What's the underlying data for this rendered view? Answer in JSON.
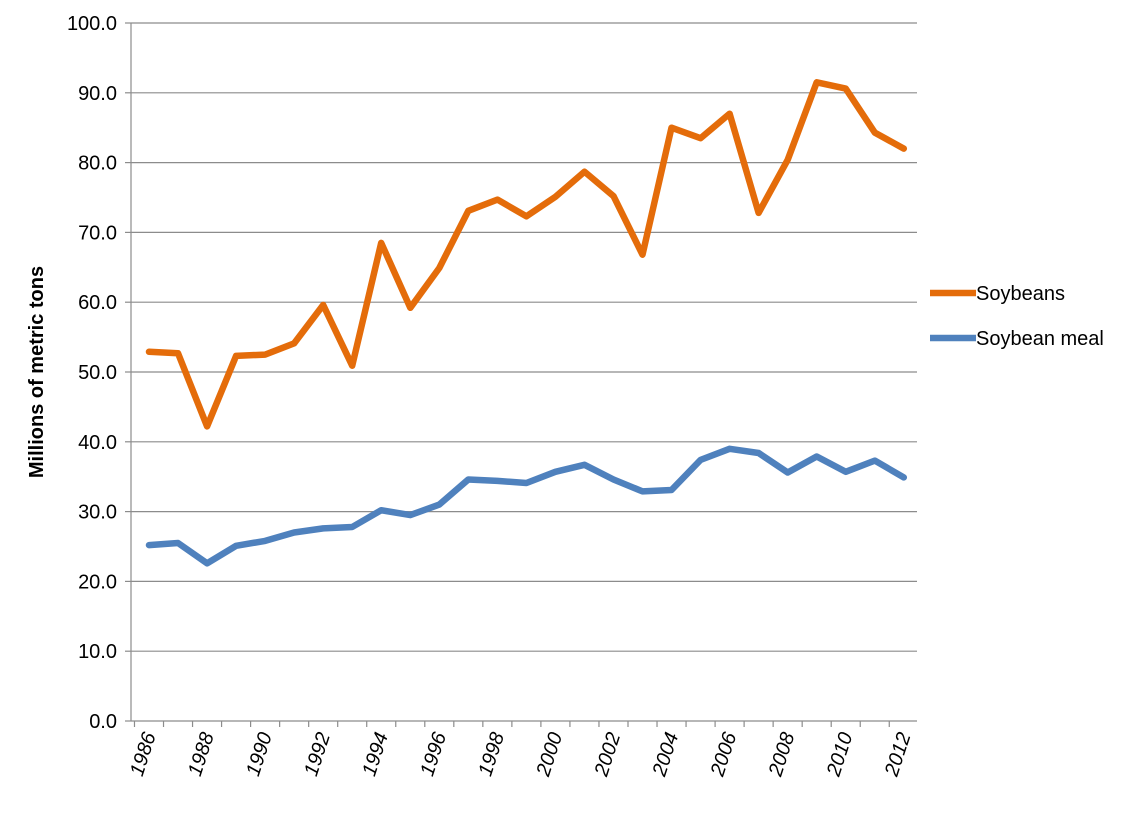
{
  "chart_data": {
    "type": "line",
    "ylabel": "Millions of metric tons",
    "ylim": [
      0,
      100
    ],
    "ytick_step": 10,
    "ytick_labels": [
      "0.0",
      "10.0",
      "20.0",
      "30.0",
      "40.0",
      "50.0",
      "60.0",
      "70.0",
      "80.0",
      "90.0",
      "100.0"
    ],
    "x": [
      1986,
      1987,
      1988,
      1989,
      1990,
      1991,
      1992,
      1993,
      1994,
      1995,
      1996,
      1997,
      1998,
      1999,
      2000,
      2001,
      2002,
      2003,
      2004,
      2005,
      2006,
      2007,
      2008,
      2009,
      2010,
      2011,
      2012
    ],
    "xtick_labels": [
      "1986",
      "1988",
      "1990",
      "1992",
      "1994",
      "1996",
      "1998",
      "2000",
      "2002",
      "2004",
      "2006",
      "2008",
      "2010",
      "2012"
    ],
    "grid": true,
    "legend_position": "right",
    "series": [
      {
        "name": "Soybeans",
        "color": "#E46C0A",
        "values": [
          52.9,
          52.7,
          42.2,
          52.3,
          52.5,
          54.1,
          59.6,
          50.9,
          68.5,
          59.2,
          64.9,
          73.1,
          74.7,
          72.3,
          75.1,
          78.7,
          75.2,
          66.8,
          85.0,
          83.5,
          87.0,
          72.8,
          80.4,
          91.5,
          90.6,
          84.3,
          82.0
        ]
      },
      {
        "name": "Soybean meal",
        "color": "#4F81BD",
        "values": [
          25.2,
          25.5,
          22.6,
          25.1,
          25.8,
          27.0,
          27.6,
          27.8,
          30.2,
          29.5,
          31.0,
          34.6,
          34.4,
          34.1,
          35.7,
          36.7,
          34.6,
          32.9,
          33.1,
          37.4,
          39.0,
          38.4,
          35.6,
          37.9,
          35.7,
          37.3,
          34.9
        ]
      }
    ]
  }
}
